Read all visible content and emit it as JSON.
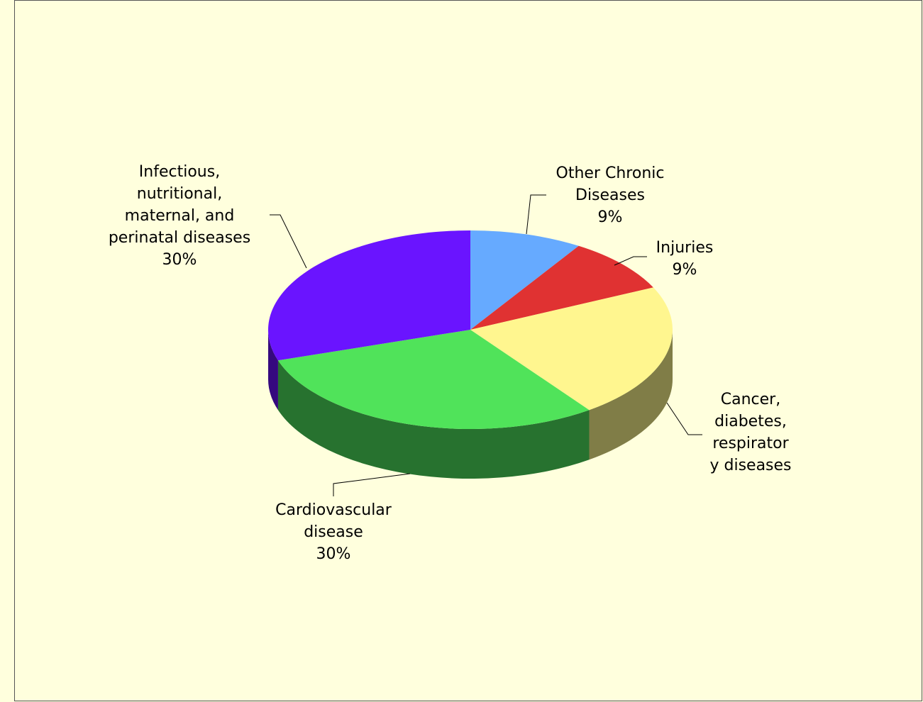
{
  "chart_data": {
    "type": "pie3d",
    "categories": [
      "Other Chronic\nDiseases",
      "Injuries",
      "Cancer,\ndiabetes,\nrespirator\ny diseases",
      "Cardiovascular\ndisease",
      "Infectious,\nnutritional,\nmaternal, and\nperinatal diseases"
    ],
    "values": [
      9,
      9,
      22,
      30,
      30
    ],
    "value_labels": [
      "9%",
      "9%",
      null,
      "30%",
      "30%"
    ],
    "colors": [
      "#66aaff",
      "#e03232",
      "#fff68f",
      "#50e35a",
      "#6a14ff"
    ],
    "side_colors": [
      "#335580",
      "#701919",
      "#807d47",
      "#27722f",
      "#35097f"
    ]
  }
}
